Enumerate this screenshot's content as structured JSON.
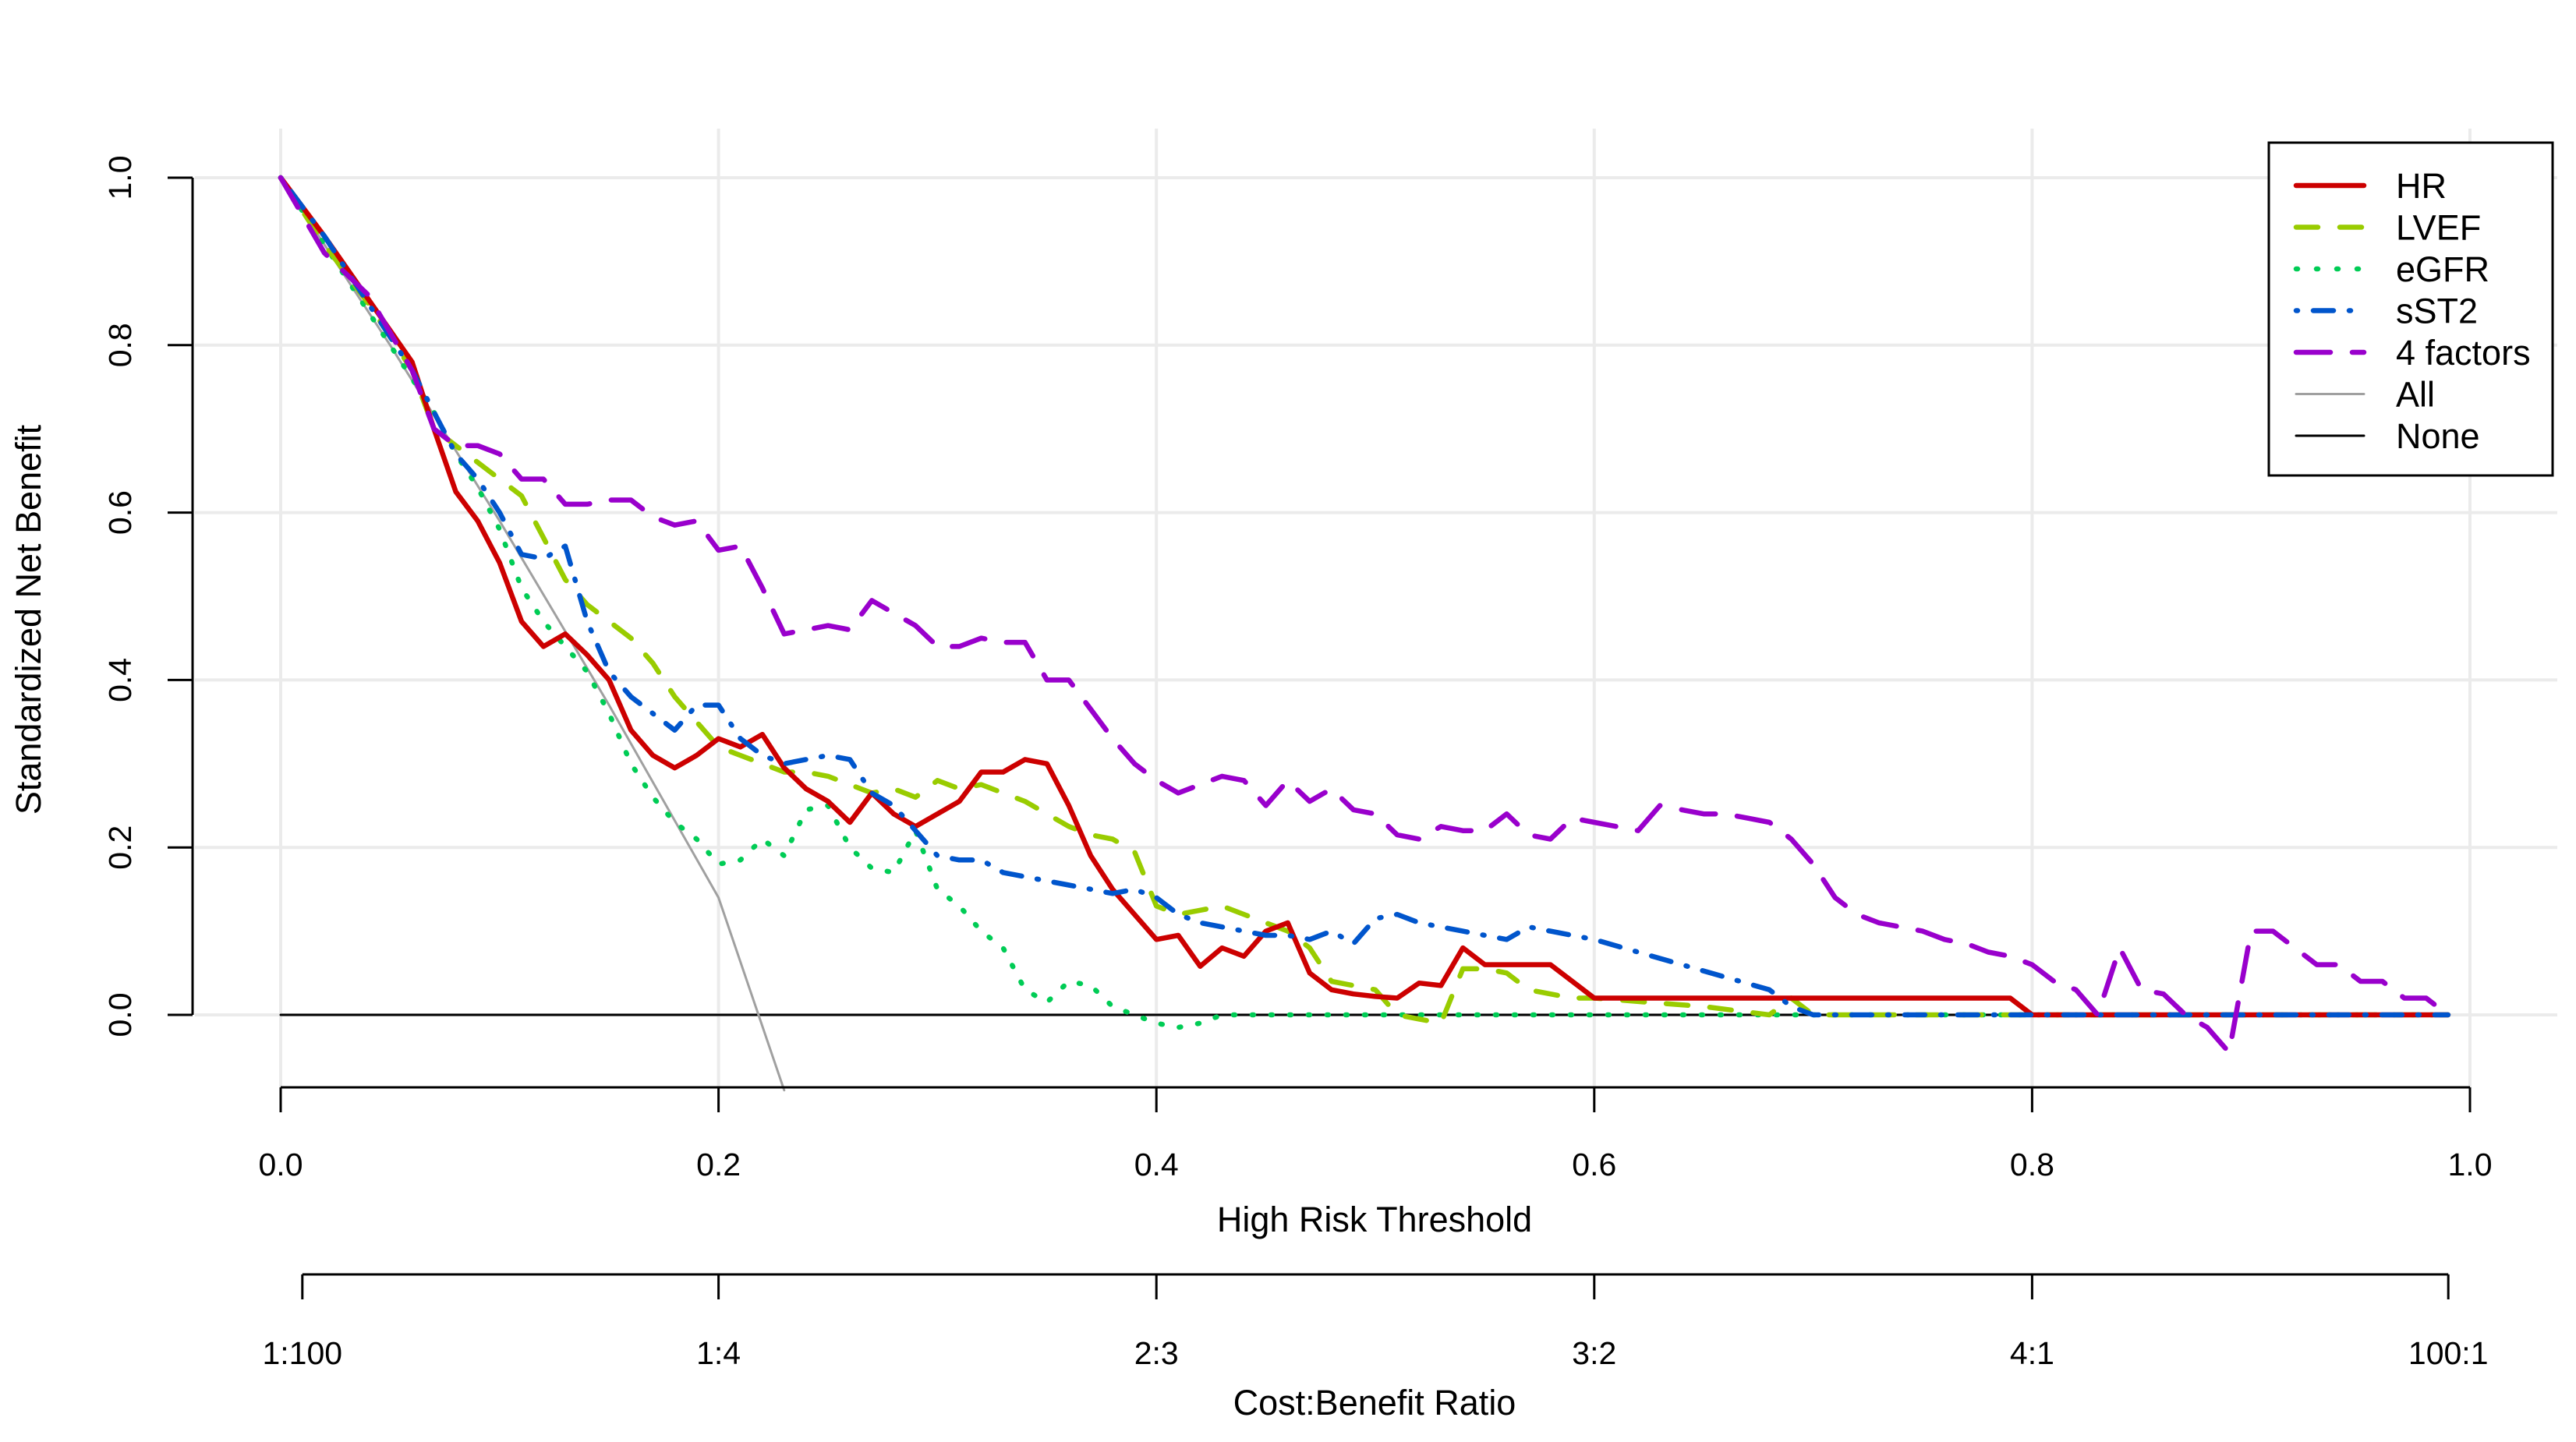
{
  "chart_data": {
    "type": "line",
    "title": "",
    "xlabel": "High Risk Threshold",
    "ylabel": "Standardized Net Benefit",
    "secondary_xlabel": "Cost:Benefit Ratio",
    "xlim": [
      0,
      1
    ],
    "ylim": [
      -0.09,
      1.0
    ],
    "grid": true,
    "legend_position": "top-right",
    "x_ticks": [
      {
        "value": 0.0,
        "label": "0.0"
      },
      {
        "value": 0.2,
        "label": "0.2"
      },
      {
        "value": 0.4,
        "label": "0.4"
      },
      {
        "value": 0.6,
        "label": "0.6"
      },
      {
        "value": 0.8,
        "label": "0.8"
      },
      {
        "value": 1.0,
        "label": "1.0"
      }
    ],
    "y_ticks": [
      {
        "value": 0.0,
        "label": "0.0"
      },
      {
        "value": 0.2,
        "label": "0.2"
      },
      {
        "value": 0.4,
        "label": "0.4"
      },
      {
        "value": 0.6,
        "label": "0.6"
      },
      {
        "value": 0.8,
        "label": "0.8"
      },
      {
        "value": 1.0,
        "label": "1.0"
      }
    ],
    "cost_benefit_ticks": [
      {
        "value": 0.0099,
        "label": "1:100"
      },
      {
        "value": 0.2,
        "label": "1:4"
      },
      {
        "value": 0.4,
        "label": "2:3"
      },
      {
        "value": 0.6,
        "label": "3:2"
      },
      {
        "value": 0.8,
        "label": "4:1"
      },
      {
        "value": 0.9901,
        "label": "100:1"
      }
    ],
    "series": [
      {
        "name": "HR",
        "color": "#cc0000",
        "dash": "solid",
        "x": [
          0.0,
          0.02,
          0.04,
          0.06,
          0.07,
          0.08,
          0.09,
          0.1,
          0.11,
          0.12,
          0.13,
          0.14,
          0.15,
          0.16,
          0.17,
          0.18,
          0.19,
          0.2,
          0.21,
          0.22,
          0.23,
          0.24,
          0.25,
          0.26,
          0.27,
          0.28,
          0.29,
          0.3,
          0.31,
          0.32,
          0.33,
          0.34,
          0.35,
          0.36,
          0.37,
          0.38,
          0.39,
          0.4,
          0.41,
          0.42,
          0.43,
          0.44,
          0.45,
          0.46,
          0.47,
          0.48,
          0.49,
          0.5,
          0.51,
          0.52,
          0.53,
          0.54,
          0.55,
          0.58,
          0.6,
          0.79,
          0.8,
          0.99
        ],
        "y": [
          1.0,
          0.93,
          0.855,
          0.78,
          0.7,
          0.625,
          0.59,
          0.54,
          0.47,
          0.44,
          0.455,
          0.43,
          0.4,
          0.34,
          0.31,
          0.295,
          0.31,
          0.33,
          0.32,
          0.335,
          0.295,
          0.27,
          0.255,
          0.23,
          0.265,
          0.24,
          0.225,
          0.24,
          0.255,
          0.29,
          0.29,
          0.305,
          0.3,
          0.25,
          0.19,
          0.15,
          0.12,
          0.09,
          0.095,
          0.058,
          0.08,
          0.07,
          0.1,
          0.11,
          0.05,
          0.03,
          0.025,
          0.022,
          0.02,
          0.038,
          0.035,
          0.08,
          0.06,
          0.06,
          0.02,
          0.02,
          0.0,
          0.0
        ]
      },
      {
        "name": "LVEF",
        "color": "#99cc00",
        "dash": "dashed",
        "x": [
          0.0,
          0.02,
          0.04,
          0.06,
          0.07,
          0.08,
          0.09,
          0.1,
          0.11,
          0.12,
          0.13,
          0.14,
          0.15,
          0.16,
          0.17,
          0.18,
          0.19,
          0.2,
          0.21,
          0.22,
          0.23,
          0.24,
          0.25,
          0.26,
          0.27,
          0.28,
          0.29,
          0.3,
          0.31,
          0.32,
          0.33,
          0.34,
          0.35,
          0.36,
          0.37,
          0.38,
          0.39,
          0.4,
          0.41,
          0.42,
          0.43,
          0.44,
          0.45,
          0.46,
          0.47,
          0.48,
          0.49,
          0.5,
          0.51,
          0.52,
          0.53,
          0.54,
          0.55,
          0.56,
          0.57,
          0.58,
          0.59,
          0.6,
          0.65,
          0.68,
          0.69,
          0.7,
          0.99
        ],
        "y": [
          1.0,
          0.92,
          0.85,
          0.77,
          0.7,
          0.68,
          0.66,
          0.64,
          0.62,
          0.57,
          0.52,
          0.49,
          0.47,
          0.45,
          0.42,
          0.38,
          0.35,
          0.32,
          0.31,
          0.3,
          0.29,
          0.29,
          0.285,
          0.275,
          0.265,
          0.27,
          0.26,
          0.28,
          0.27,
          0.275,
          0.265,
          0.255,
          0.24,
          0.225,
          0.215,
          0.21,
          0.195,
          0.13,
          0.12,
          0.125,
          0.13,
          0.12,
          0.11,
          0.1,
          0.08,
          0.04,
          0.035,
          0.03,
          0.0,
          -0.005,
          -0.01,
          0.055,
          0.055,
          0.05,
          0.03,
          0.025,
          0.02,
          0.02,
          0.01,
          0.0,
          0.02,
          0.0,
          0.0
        ]
      },
      {
        "name": "eGFR",
        "color": "#00cc55",
        "dash": "dotted",
        "x": [
          0.0,
          0.02,
          0.04,
          0.06,
          0.07,
          0.08,
          0.09,
          0.1,
          0.11,
          0.12,
          0.13,
          0.14,
          0.15,
          0.16,
          0.17,
          0.18,
          0.19,
          0.2,
          0.21,
          0.22,
          0.23,
          0.24,
          0.25,
          0.26,
          0.27,
          0.28,
          0.29,
          0.3,
          0.31,
          0.32,
          0.33,
          0.34,
          0.35,
          0.36,
          0.37,
          0.38,
          0.39,
          0.4,
          0.41,
          0.42,
          0.43,
          0.44,
          0.99
        ],
        "y": [
          1.0,
          0.92,
          0.84,
          0.76,
          0.72,
          0.67,
          0.63,
          0.58,
          0.51,
          0.47,
          0.44,
          0.41,
          0.36,
          0.3,
          0.26,
          0.23,
          0.21,
          0.18,
          0.185,
          0.21,
          0.19,
          0.245,
          0.25,
          0.2,
          0.175,
          0.17,
          0.22,
          0.15,
          0.13,
          0.1,
          0.08,
          0.03,
          0.015,
          0.04,
          0.035,
          0.01,
          0.0,
          -0.01,
          -0.015,
          -0.01,
          0.0,
          0.0,
          0.0
        ]
      },
      {
        "name": "sST2",
        "color": "#0055cc",
        "dash": "dotdash",
        "x": [
          0.0,
          0.02,
          0.04,
          0.06,
          0.07,
          0.08,
          0.09,
          0.1,
          0.11,
          0.12,
          0.13,
          0.14,
          0.15,
          0.16,
          0.17,
          0.18,
          0.19,
          0.2,
          0.21,
          0.22,
          0.23,
          0.24,
          0.25,
          0.26,
          0.27,
          0.28,
          0.29,
          0.3,
          0.31,
          0.32,
          0.33,
          0.34,
          0.35,
          0.36,
          0.37,
          0.38,
          0.39,
          0.4,
          0.41,
          0.42,
          0.43,
          0.44,
          0.45,
          0.46,
          0.47,
          0.48,
          0.49,
          0.5,
          0.51,
          0.52,
          0.53,
          0.54,
          0.55,
          0.56,
          0.57,
          0.58,
          0.59,
          0.6,
          0.62,
          0.64,
          0.66,
          0.68,
          0.69,
          0.7,
          0.99
        ],
        "y": [
          1.0,
          0.93,
          0.85,
          0.77,
          0.72,
          0.67,
          0.64,
          0.6,
          0.55,
          0.545,
          0.56,
          0.47,
          0.41,
          0.38,
          0.36,
          0.34,
          0.37,
          0.37,
          0.33,
          0.31,
          0.3,
          0.305,
          0.31,
          0.305,
          0.265,
          0.25,
          0.22,
          0.19,
          0.185,
          0.185,
          0.17,
          0.165,
          0.16,
          0.155,
          0.15,
          0.145,
          0.15,
          0.14,
          0.12,
          0.11,
          0.105,
          0.1,
          0.095,
          0.095,
          0.09,
          0.1,
          0.085,
          0.115,
          0.12,
          0.11,
          0.105,
          0.1,
          0.095,
          0.09,
          0.105,
          0.1,
          0.095,
          0.09,
          0.075,
          0.06,
          0.045,
          0.03,
          0.01,
          0.0,
          0.0
        ]
      },
      {
        "name": "4 factors",
        "color": "#9900cc",
        "dash": "longdash",
        "x": [
          0.0,
          0.02,
          0.04,
          0.06,
          0.07,
          0.08,
          0.09,
          0.1,
          0.11,
          0.12,
          0.13,
          0.14,
          0.15,
          0.16,
          0.17,
          0.18,
          0.19,
          0.2,
          0.21,
          0.22,
          0.23,
          0.24,
          0.25,
          0.26,
          0.27,
          0.28,
          0.29,
          0.3,
          0.31,
          0.32,
          0.33,
          0.34,
          0.35,
          0.36,
          0.37,
          0.38,
          0.39,
          0.4,
          0.41,
          0.42,
          0.43,
          0.44,
          0.45,
          0.46,
          0.47,
          0.48,
          0.49,
          0.5,
          0.51,
          0.52,
          0.53,
          0.54,
          0.55,
          0.56,
          0.57,
          0.58,
          0.59,
          0.6,
          0.61,
          0.62,
          0.63,
          0.64,
          0.65,
          0.66,
          0.67,
          0.68,
          0.69,
          0.7,
          0.71,
          0.72,
          0.73,
          0.74,
          0.75,
          0.76,
          0.77,
          0.78,
          0.79,
          0.8,
          0.81,
          0.82,
          0.83,
          0.84,
          0.85,
          0.86,
          0.87,
          0.88,
          0.89,
          0.9,
          0.91,
          0.92,
          0.93,
          0.94,
          0.95,
          0.96,
          0.97,
          0.98,
          0.99
        ],
        "y": [
          1.0,
          0.91,
          0.86,
          0.77,
          0.7,
          0.68,
          0.68,
          0.67,
          0.64,
          0.64,
          0.61,
          0.61,
          0.615,
          0.615,
          0.595,
          0.585,
          0.59,
          0.555,
          0.56,
          0.51,
          0.455,
          0.46,
          0.465,
          0.46,
          0.495,
          0.48,
          0.465,
          0.44,
          0.44,
          0.45,
          0.445,
          0.445,
          0.4,
          0.4,
          0.365,
          0.33,
          0.3,
          0.28,
          0.265,
          0.275,
          0.285,
          0.28,
          0.25,
          0.28,
          0.255,
          0.27,
          0.245,
          0.24,
          0.215,
          0.21,
          0.225,
          0.22,
          0.22,
          0.24,
          0.215,
          0.21,
          0.235,
          0.23,
          0.225,
          0.22,
          0.25,
          0.245,
          0.24,
          0.24,
          0.235,
          0.23,
          0.21,
          0.18,
          0.14,
          0.12,
          0.11,
          0.105,
          0.1,
          0.09,
          0.085,
          0.075,
          0.07,
          0.06,
          0.04,
          0.03,
          0.0,
          0.08,
          0.03,
          0.025,
          0.0,
          -0.015,
          -0.045,
          0.1,
          0.1,
          0.08,
          0.06,
          0.06,
          0.04,
          0.04,
          0.02,
          0.02,
          0.0
        ]
      },
      {
        "name": "All",
        "color": "#a0a0a0",
        "dash": "solid",
        "x": [
          0.0,
          0.05,
          0.1,
          0.15,
          0.2,
          0.23
        ],
        "y": [
          1.0,
          0.8,
          0.59,
          0.37,
          0.14,
          -0.09
        ]
      },
      {
        "name": "None",
        "color": "#000000",
        "dash": "solid",
        "x": [
          0.0,
          0.99
        ],
        "y": [
          0.0,
          0.0
        ]
      }
    ]
  }
}
